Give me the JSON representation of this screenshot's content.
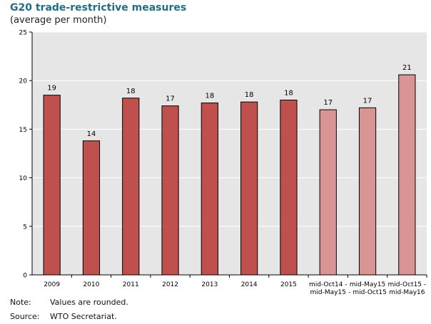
{
  "chart_data": {
    "type": "bar",
    "title": "G20 trade-restrictive measures",
    "subtitle": "(average per month)",
    "categories": [
      [
        "2009"
      ],
      [
        "2010"
      ],
      [
        "2011"
      ],
      [
        "2012"
      ],
      [
        "2013"
      ],
      [
        "2014"
      ],
      [
        "2015"
      ],
      [
        "mid-Oct14 -",
        "mid-May15"
      ],
      [
        "mid-May15",
        "- mid-Oct15"
      ],
      [
        "mid-Oct15 -",
        "mid-May16"
      ]
    ],
    "values": [
      18.5,
      13.8,
      18.2,
      17.4,
      17.7,
      17.8,
      18.0,
      17.0,
      17.2,
      20.6
    ],
    "data_labels": [
      "19",
      "14",
      "18",
      "17",
      "18",
      "18",
      "18",
      "17",
      "17",
      "21"
    ],
    "ylim": [
      0,
      25
    ],
    "yticks": [
      0,
      5,
      10,
      15,
      20,
      25
    ],
    "grid": true,
    "colors": [
      "#c0504d",
      "#c0504d",
      "#c0504d",
      "#c0504d",
      "#c0504d",
      "#c0504d",
      "#c0504d",
      "#d99594",
      "#d99594",
      "#d99594"
    ]
  },
  "notes": {
    "note_key": "Note:",
    "note_text": "Values are rounded.",
    "source_key": "Source:",
    "source_text": "WTO Secretariat."
  },
  "style": {
    "plot_bg": "#e6e6e6",
    "grid_color": "#ffffff",
    "title_color": "#1f6f8b"
  }
}
